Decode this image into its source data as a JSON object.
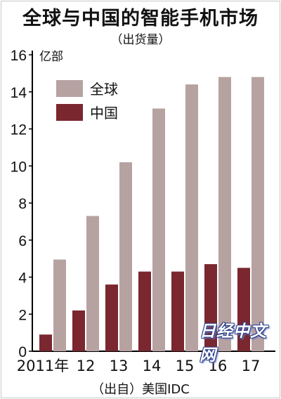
{
  "header": {
    "title": "全球与中国的智能手机市场",
    "subtitle": "（出货量）"
  },
  "source": "（出自）美国IDC",
  "watermark": "日经中文网",
  "colors": {
    "global": "#b7a2a2",
    "china": "#7a2730",
    "axis": "#000000"
  },
  "chart_data": {
    "type": "bar",
    "title": "全球与中国的智能手机市场",
    "subtitle": "（出货量）",
    "y_unit": "亿部",
    "categories": [
      "2011年",
      "12",
      "13",
      "14",
      "15",
      "16",
      "17"
    ],
    "series": [
      {
        "name": "中国",
        "values": [
          0.9,
          2.2,
          3.6,
          4.3,
          4.3,
          4.7,
          4.5
        ],
        "color": "#7a2730"
      },
      {
        "name": "全球",
        "values": [
          4.95,
          7.3,
          10.2,
          13.1,
          14.4,
          14.8,
          14.8
        ],
        "color": "#b7a2a2"
      }
    ],
    "ylim": [
      0,
      16
    ],
    "yticks": [
      0,
      2,
      4,
      6,
      8,
      10,
      12,
      14,
      16
    ],
    "legend": [
      "全球",
      "中国"
    ],
    "legend_position": "top-left",
    "grid": false
  }
}
